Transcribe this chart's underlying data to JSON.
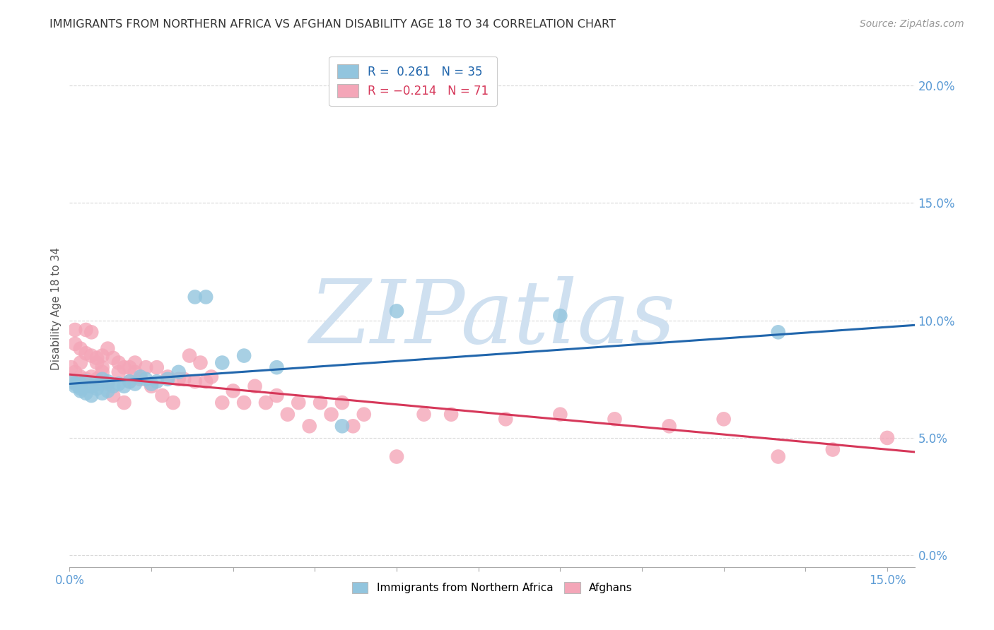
{
  "title": "IMMIGRANTS FROM NORTHERN AFRICA VS AFGHAN DISABILITY AGE 18 TO 34 CORRELATION CHART",
  "source": "Source: ZipAtlas.com",
  "ylabel": "Disability Age 18 to 34",
  "xlim": [
    0.0,
    0.155
  ],
  "ylim": [
    -0.005,
    0.215
  ],
  "xticks": [
    0.0,
    0.015,
    0.03,
    0.045,
    0.06,
    0.075,
    0.09,
    0.105,
    0.12,
    0.135,
    0.15
  ],
  "xtick_labels_show": [
    0,
    10
  ],
  "yticks": [
    0.0,
    0.05,
    0.1,
    0.15,
    0.2
  ],
  "blue_color": "#92c5de",
  "pink_color": "#f4a6b8",
  "blue_line_color": "#2166ac",
  "pink_line_color": "#d6385a",
  "axis_label_color": "#5b9bd5",
  "watermark_text": "ZIPatlas",
  "watermark_color": "#cfe0f0",
  "blue_trend_x": [
    0.0,
    0.155
  ],
  "blue_trend_y": [
    0.073,
    0.098
  ],
  "pink_trend_x": [
    0.0,
    0.155
  ],
  "pink_trend_y": [
    0.077,
    0.044
  ],
  "blue_x": [
    0.0005,
    0.001,
    0.001,
    0.002,
    0.002,
    0.002,
    0.003,
    0.003,
    0.004,
    0.004,
    0.005,
    0.005,
    0.006,
    0.006,
    0.007,
    0.007,
    0.008,
    0.009,
    0.01,
    0.011,
    0.012,
    0.013,
    0.014,
    0.015,
    0.016,
    0.018,
    0.02,
    0.023,
    0.025,
    0.028,
    0.032,
    0.038,
    0.05,
    0.06,
    0.09,
    0.13
  ],
  "blue_y": [
    0.074,
    0.073,
    0.072,
    0.071,
    0.073,
    0.07,
    0.074,
    0.069,
    0.068,
    0.072,
    0.073,
    0.071,
    0.075,
    0.069,
    0.07,
    0.074,
    0.072,
    0.073,
    0.072,
    0.074,
    0.073,
    0.076,
    0.075,
    0.073,
    0.074,
    0.075,
    0.078,
    0.11,
    0.11,
    0.082,
    0.085,
    0.08,
    0.055,
    0.104,
    0.102,
    0.095
  ],
  "pink_x": [
    0.0003,
    0.0005,
    0.001,
    0.001,
    0.001,
    0.002,
    0.002,
    0.002,
    0.003,
    0.003,
    0.003,
    0.004,
    0.004,
    0.004,
    0.005,
    0.005,
    0.005,
    0.006,
    0.006,
    0.006,
    0.007,
    0.007,
    0.008,
    0.008,
    0.009,
    0.009,
    0.01,
    0.01,
    0.011,
    0.011,
    0.012,
    0.012,
    0.013,
    0.014,
    0.015,
    0.016,
    0.017,
    0.018,
    0.019,
    0.02,
    0.021,
    0.022,
    0.023,
    0.024,
    0.025,
    0.026,
    0.028,
    0.03,
    0.032,
    0.034,
    0.036,
    0.038,
    0.04,
    0.042,
    0.044,
    0.046,
    0.048,
    0.05,
    0.052,
    0.054,
    0.06,
    0.065,
    0.07,
    0.08,
    0.09,
    0.1,
    0.11,
    0.12,
    0.13,
    0.14,
    0.15
  ],
  "pink_y": [
    0.08,
    0.074,
    0.09,
    0.078,
    0.096,
    0.088,
    0.076,
    0.082,
    0.075,
    0.086,
    0.096,
    0.076,
    0.085,
    0.095,
    0.084,
    0.075,
    0.082,
    0.08,
    0.078,
    0.085,
    0.073,
    0.088,
    0.068,
    0.084,
    0.078,
    0.082,
    0.065,
    0.08,
    0.074,
    0.08,
    0.078,
    0.082,
    0.075,
    0.08,
    0.072,
    0.08,
    0.068,
    0.076,
    0.065,
    0.075,
    0.075,
    0.085,
    0.074,
    0.082,
    0.074,
    0.076,
    0.065,
    0.07,
    0.065,
    0.072,
    0.065,
    0.068,
    0.06,
    0.065,
    0.055,
    0.065,
    0.06,
    0.065,
    0.055,
    0.06,
    0.042,
    0.06,
    0.06,
    0.058,
    0.06,
    0.058,
    0.055,
    0.058,
    0.042,
    0.045,
    0.05
  ]
}
